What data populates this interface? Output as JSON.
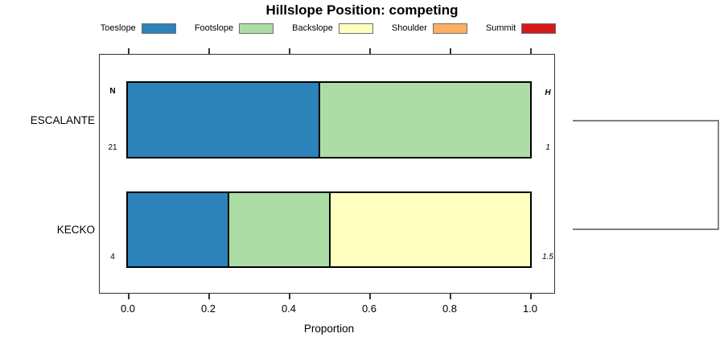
{
  "title": "Hillslope Position: competing",
  "legend": {
    "items": [
      {
        "label": "Toeslope",
        "color": "#2B83BA"
      },
      {
        "label": "Footslope",
        "color": "#ABDDA4"
      },
      {
        "label": "Backslope",
        "color": "#FFFFBF"
      },
      {
        "label": "Shoulder",
        "color": "#FDAE61"
      },
      {
        "label": "Summit",
        "color": "#D7191C"
      }
    ]
  },
  "x_axis": {
    "label": "Proportion",
    "tick_labels": [
      "0.0",
      "0.2",
      "0.4",
      "0.6",
      "0.8",
      "1.0"
    ],
    "tick_values": [
      0.0,
      0.2,
      0.4,
      0.6,
      0.8,
      1.0
    ]
  },
  "stats": {
    "n_header": "N",
    "h_header": "H"
  },
  "rows": [
    {
      "label": "ESCALANTE",
      "n": "21",
      "h": "1",
      "segments": [
        {
          "category": "Toeslope",
          "proportion": 0.476
        },
        {
          "category": "Footslope",
          "proportion": 0.524
        }
      ]
    },
    {
      "label": "KECKO",
      "n": "4",
      "h": "1.5",
      "segments": [
        {
          "category": "Toeslope",
          "proportion": 0.25
        },
        {
          "category": "Footslope",
          "proportion": 0.25
        },
        {
          "category": "Backslope",
          "proportion": 0.5
        }
      ]
    }
  ],
  "chart_data": {
    "type": "bar",
    "orientation": "horizontal-stacked",
    "title": "Hillslope Position: competing",
    "xlabel": "Proportion",
    "xlim": [
      0,
      1
    ],
    "xticks": [
      0.0,
      0.2,
      0.4,
      0.6,
      0.8,
      1.0
    ],
    "categories": [
      "ESCALANTE",
      "KECKO"
    ],
    "series": [
      {
        "name": "Toeslope",
        "color": "#2B83BA",
        "values": [
          0.476,
          0.25
        ]
      },
      {
        "name": "Footslope",
        "color": "#ABDDA4",
        "values": [
          0.524,
          0.25
        ]
      },
      {
        "name": "Backslope",
        "color": "#FFFFBF",
        "values": [
          0.0,
          0.5
        ]
      },
      {
        "name": "Shoulder",
        "color": "#FDAE61",
        "values": [
          0.0,
          0.0
        ]
      },
      {
        "name": "Summit",
        "color": "#D7191C",
        "values": [
          0.0,
          0.0
        ]
      }
    ],
    "annotations": {
      "N": {
        "header": "N",
        "values": [
          21,
          4
        ]
      },
      "H": {
        "header": "H",
        "values": [
          1,
          1.5
        ]
      }
    },
    "legend_position": "top",
    "grid": false,
    "extras": "right-side dendrogram bracket joining the two rows"
  }
}
